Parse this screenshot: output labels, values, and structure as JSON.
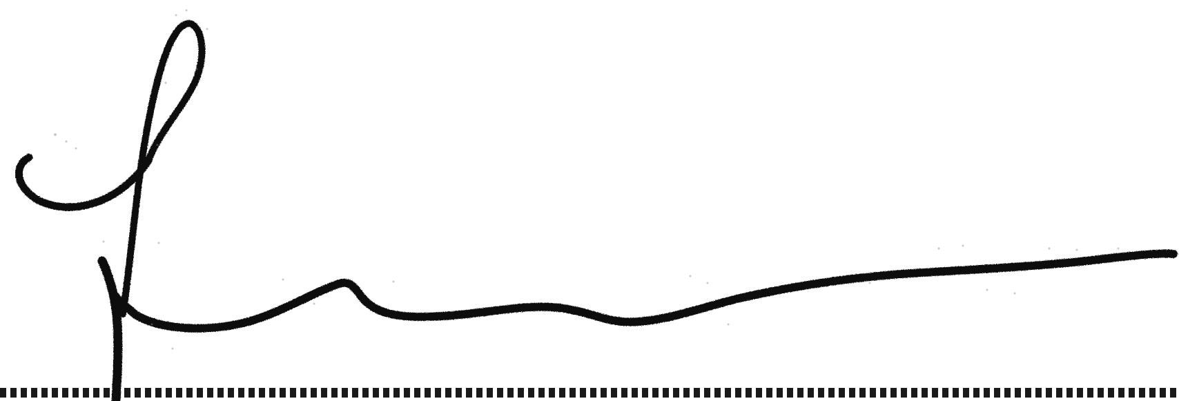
{
  "image": {
    "kind": "scanned-signature",
    "colors": {
      "background": "#ffffff",
      "ink": "#111111",
      "speckle": "#8a8a8a",
      "baseline": "#1a1a1a"
    }
  },
  "signature": {
    "style": "handwritten-cursive",
    "baseline_style": "dashed"
  }
}
